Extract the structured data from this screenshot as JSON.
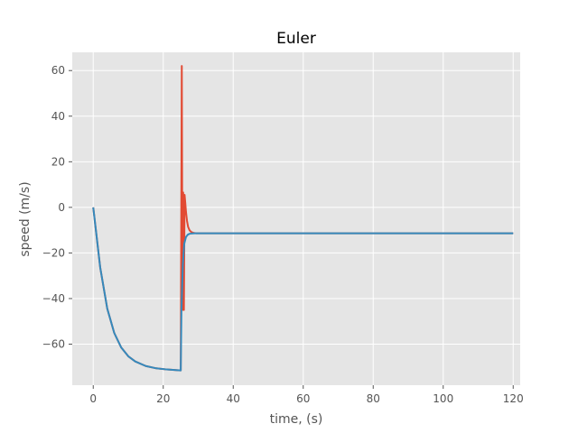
{
  "chart_data": {
    "type": "line",
    "title": "Euler",
    "xlabel": "time, (s)",
    "ylabel": "speed (m/s)",
    "xlim": [
      -6,
      122
    ],
    "ylim": [
      -78,
      68
    ],
    "grid": true,
    "style": "ggplot",
    "xticks": [
      0,
      20,
      40,
      60,
      80,
      100,
      120
    ],
    "xtick_labels": [
      "0",
      "20",
      "40",
      "60",
      "80",
      "100",
      "120"
    ],
    "yticks": [
      60,
      40,
      20,
      0,
      -20,
      -40,
      -60
    ],
    "ytick_labels": [
      "60",
      "40",
      "20",
      "0",
      "−20",
      "−40",
      "−60"
    ],
    "series": [
      {
        "color": "#E24A33",
        "x": [
          0,
          2,
          4,
          6,
          8,
          10,
          12,
          15,
          18,
          21,
          24,
          25,
          25.3,
          25.5,
          25.7,
          25.9,
          26.1,
          26.3,
          26.5,
          26.8,
          27.1,
          27.5,
          28,
          28.5,
          29,
          29.5,
          30,
          40,
          60,
          80,
          100,
          120
        ],
        "y": [
          0,
          -26.5,
          -44.4,
          -55.1,
          -61.5,
          -65.3,
          -67.6,
          -69.6,
          -70.6,
          -71.1,
          -71.4,
          -71.5,
          62,
          -45,
          6.5,
          -45,
          5.5,
          2,
          -2,
          -6,
          -8.5,
          -10,
          -10.8,
          -11.1,
          -11.3,
          -11.4,
          -11.4,
          -11.4,
          -11.4,
          -11.4,
          -11.4,
          -11.4
        ]
      },
      {
        "color": "#348ABD",
        "x": [
          0,
          2,
          4,
          6,
          8,
          10,
          12,
          15,
          18,
          21,
          24,
          25,
          25.2,
          25.6,
          26,
          26.5,
          27,
          27.5,
          28,
          29,
          30,
          40,
          60,
          80,
          100,
          120
        ],
        "y": [
          0,
          -26.5,
          -44.4,
          -55.1,
          -61.5,
          -65.3,
          -67.6,
          -69.6,
          -70.6,
          -71.1,
          -71.4,
          -71.5,
          -45,
          -25,
          -16,
          -13,
          -12,
          -11.6,
          -11.5,
          -11.4,
          -11.4,
          -11.4,
          -11.4,
          -11.4,
          -11.4,
          -11.4
        ]
      }
    ]
  }
}
